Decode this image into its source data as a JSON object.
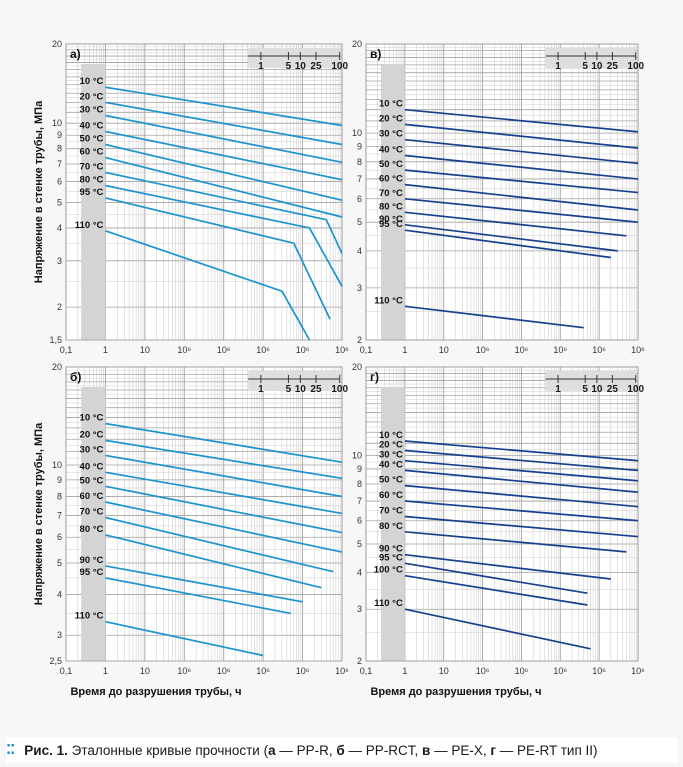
{
  "caption": {
    "prefix": "Рис. 1.",
    "text_1": "Эталонные кривые прочности (",
    "a": "а",
    "t_a": " — PP-R, ",
    "b": "б",
    "t_b": " — PP-RCT, ",
    "v": "в",
    "t_v": " — PE-X, ",
    "g": "г",
    "t_g": " — PE-RT тип II)"
  },
  "colors": {
    "light_blue": "#1b94cf",
    "dark_blue": "#17408f",
    "label_band": "#d4d4d4",
    "grid": "#c9c9c9",
    "grid_major": "#a3a3a3"
  },
  "chart_data": [
    {
      "type": "line",
      "panel_label": "а)",
      "x_scale": "log",
      "y_scale": "log",
      "xlim": [
        0.1,
        1000000
      ],
      "ylim": [
        1.5,
        20
      ],
      "x_ticks": [
        "0,1",
        "1",
        "10",
        "10⁶",
        "10⁶",
        "10⁶",
        "10⁶",
        "10⁶"
      ],
      "y_ticks": [
        "20",
        "10",
        "9",
        "8",
        "7",
        "6",
        "5",
        "4",
        "3",
        "2",
        "1,5"
      ],
      "ylabel": "Напряжение в стенке трубы, МПа",
      "xlabel": "",
      "years_scale": [
        "1",
        "5",
        "10",
        "25",
        "100"
      ],
      "color": "#1b94cf",
      "series": [
        {
          "name": "10 °C",
          "points": [
            [
              1,
              13.7
            ],
            [
              1000000,
              9.8
            ]
          ]
        },
        {
          "name": "20 °C",
          "points": [
            [
              1,
              12.0
            ],
            [
              1000000,
              8.3
            ]
          ]
        },
        {
          "name": "30 °C",
          "points": [
            [
              1,
              10.7
            ],
            [
              1000000,
              7.1
            ]
          ]
        },
        {
          "name": "40 °C",
          "points": [
            [
              1,
              9.3
            ],
            [
              1000000,
              6.1
            ]
          ]
        },
        {
          "name": "50 °C",
          "points": [
            [
              1,
              8.3
            ],
            [
              1000000,
              5.1
            ]
          ]
        },
        {
          "name": "60 °C",
          "points": [
            [
              1,
              7.4
            ],
            [
              1000000,
              4.4
            ]
          ]
        },
        {
          "name": "70 °C",
          "points": [
            [
              1,
              6.5
            ],
            [
              400000,
              4.3
            ],
            [
              1000000,
              3.2
            ]
          ]
        },
        {
          "name": "80 °C",
          "points": [
            [
              1,
              5.8
            ],
            [
              150000,
              4.0
            ],
            [
              1000000,
              2.4
            ]
          ]
        },
        {
          "name": "95 °C",
          "points": [
            [
              1,
              5.2
            ],
            [
              60000,
              3.5
            ],
            [
              500000,
              1.8
            ]
          ]
        },
        {
          "name": "110 °C",
          "points": [
            [
              1,
              3.9
            ],
            [
              30000,
              2.3
            ],
            [
              150000,
              1.5
            ]
          ]
        }
      ]
    },
    {
      "type": "line",
      "panel_label": "в)",
      "x_scale": "log",
      "y_scale": "log",
      "xlim": [
        0.1,
        1000000
      ],
      "ylim": [
        2,
        20
      ],
      "x_ticks": [
        "0,1",
        "1",
        "10",
        "10⁶",
        "10⁶",
        "10⁶",
        "10⁶",
        "10⁶"
      ],
      "y_ticks": [
        "20",
        "10",
        "9",
        "8",
        "7",
        "6",
        "5",
        "4",
        "3",
        "2"
      ],
      "ylabel": "",
      "xlabel": "",
      "years_scale": [
        "1",
        "5",
        "10",
        "25",
        "100"
      ],
      "color": "#17408f",
      "series": [
        {
          "name": "10 °C",
          "points": [
            [
              1,
              12.0
            ],
            [
              1000000,
              10.1
            ]
          ]
        },
        {
          "name": "20 °C",
          "points": [
            [
              1,
              10.7
            ],
            [
              1000000,
              8.9
            ]
          ]
        },
        {
          "name": "30 °C",
          "points": [
            [
              1,
              9.5
            ],
            [
              1000000,
              7.9
            ]
          ]
        },
        {
          "name": "40 °C",
          "points": [
            [
              1,
              8.4
            ],
            [
              1000000,
              7.0
            ]
          ]
        },
        {
          "name": "50 °C",
          "points": [
            [
              1,
              7.5
            ],
            [
              1000000,
              6.3
            ]
          ]
        },
        {
          "name": "60 °C",
          "points": [
            [
              1,
              6.7
            ],
            [
              1000000,
              5.5
            ]
          ]
        },
        {
          "name": "70 °C",
          "points": [
            [
              1,
              6.0
            ],
            [
              1000000,
              5.0
            ]
          ]
        },
        {
          "name": "80 °C",
          "points": [
            [
              1,
              5.4
            ],
            [
              500000,
              4.5
            ]
          ]
        },
        {
          "name": "90 °C",
          "points": [
            [
              1,
              4.9
            ],
            [
              300000,
              4.0
            ]
          ]
        },
        {
          "name": "95 °C",
          "points": [
            [
              1,
              4.7
            ],
            [
              200000,
              3.8
            ]
          ]
        },
        {
          "name": "110 °C",
          "points": [
            [
              1,
              2.6
            ],
            [
              40000,
              2.2
            ]
          ]
        }
      ]
    },
    {
      "type": "line",
      "panel_label": "б)",
      "x_scale": "log",
      "y_scale": "log",
      "xlim": [
        0.1,
        1000000
      ],
      "ylim": [
        2.5,
        20
      ],
      "x_ticks": [
        "0,1",
        "1",
        "10",
        "10⁶",
        "10⁶",
        "10⁶",
        "10⁶",
        "10⁶"
      ],
      "y_ticks": [
        "20",
        "10",
        "9",
        "8",
        "7",
        "6",
        "5",
        "4",
        "3",
        "2,5"
      ],
      "ylabel": "Напряжение в стенке трубы, МПа",
      "xlabel": "Время до разрушения трубы, ч",
      "years_scale": [
        "1",
        "5",
        "10",
        "25",
        "100"
      ],
      "color": "#1b94cf",
      "series": [
        {
          "name": "10 °C",
          "points": [
            [
              1,
              13.4
            ],
            [
              1000000,
              10.2
            ]
          ]
        },
        {
          "name": "20 °C",
          "points": [
            [
              1,
              11.9
            ],
            [
              1000000,
              9.1
            ]
          ]
        },
        {
          "name": "30 °C",
          "points": [
            [
              1,
              10.7
            ],
            [
              1000000,
              8.0
            ]
          ]
        },
        {
          "name": "40 °C",
          "points": [
            [
              1,
              9.5
            ],
            [
              1000000,
              7.1
            ]
          ]
        },
        {
          "name": "50 °C",
          "points": [
            [
              1,
              8.6
            ],
            [
              1000000,
              6.2
            ]
          ]
        },
        {
          "name": "60 °C",
          "points": [
            [
              1,
              7.7
            ],
            [
              1000000,
              5.4
            ]
          ]
        },
        {
          "name": "70 °C",
          "points": [
            [
              1,
              6.9
            ],
            [
              600000,
              4.7
            ]
          ]
        },
        {
          "name": "80 °C",
          "points": [
            [
              1,
              6.1
            ],
            [
              300000,
              4.2
            ]
          ]
        },
        {
          "name": "90 °C",
          "points": [
            [
              1,
              4.9
            ],
            [
              100000,
              3.8
            ]
          ]
        },
        {
          "name": "95 °C",
          "points": [
            [
              1,
              4.5
            ],
            [
              50000,
              3.5
            ]
          ]
        },
        {
          "name": "110 °C",
          "points": [
            [
              1,
              3.3
            ],
            [
              10000,
              2.6
            ]
          ]
        }
      ]
    },
    {
      "type": "line",
      "panel_label": "г)",
      "x_scale": "log",
      "y_scale": "log",
      "xlim": [
        0.1,
        1000000
      ],
      "ylim": [
        2,
        20
      ],
      "x_ticks": [
        "0,1",
        "1",
        "10",
        "10⁶",
        "10⁶",
        "10⁶",
        "10⁶",
        "10⁶"
      ],
      "y_ticks": [
        "20",
        "10",
        "9",
        "8",
        "7",
        "6",
        "5",
        "4",
        "3",
        "2"
      ],
      "ylabel": "",
      "xlabel": "Время до разрушения трубы, ч",
      "years_scale": [
        "1",
        "5",
        "10",
        "25",
        "100"
      ],
      "color": "#17408f",
      "series": [
        {
          "name": "10 °C",
          "points": [
            [
              1,
              11.2
            ],
            [
              1000000,
              9.6
            ]
          ]
        },
        {
          "name": "20 °C",
          "points": [
            [
              1,
              10.4
            ],
            [
              1000000,
              8.9
            ]
          ]
        },
        {
          "name": "30 °C",
          "points": [
            [
              1,
              9.6
            ],
            [
              1000000,
              8.2
            ]
          ]
        },
        {
          "name": "40 °C",
          "points": [
            [
              1,
              8.9
            ],
            [
              1000000,
              7.5
            ]
          ]
        },
        {
          "name": "50 °C",
          "points": [
            [
              1,
              7.9
            ],
            [
              1000000,
              6.7
            ]
          ]
        },
        {
          "name": "60 °C",
          "points": [
            [
              1,
              7.0
            ],
            [
              1000000,
              6.0
            ]
          ]
        },
        {
          "name": "70 °C",
          "points": [
            [
              1,
              6.2
            ],
            [
              1000000,
              5.3
            ]
          ]
        },
        {
          "name": "80 °C",
          "points": [
            [
              1,
              5.5
            ],
            [
              500000,
              4.7
            ]
          ]
        },
        {
          "name": "90 °C",
          "points": [
            [
              1,
              4.6
            ],
            [
              200000,
              3.8
            ]
          ]
        },
        {
          "name": "95 °C",
          "points": [
            [
              1,
              4.3
            ],
            [
              50000,
              3.4
            ]
          ]
        },
        {
          "name": "100 °C",
          "points": [
            [
              1,
              3.9
            ],
            [
              50000,
              3.1
            ]
          ]
        },
        {
          "name": "110 °C",
          "points": [
            [
              1,
              3.0
            ],
            [
              60000,
              2.2
            ]
          ]
        }
      ]
    }
  ]
}
